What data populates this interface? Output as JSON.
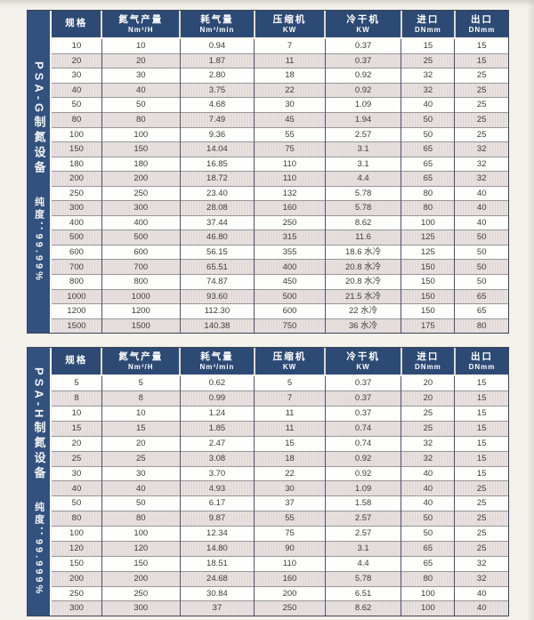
{
  "columns": [
    {
      "title": "规格",
      "sub": ""
    },
    {
      "title": "氮气产量",
      "sub": "Nm³/H"
    },
    {
      "title": "耗气量",
      "sub": "Nm³/min"
    },
    {
      "title": "压缩机",
      "sub": "KW"
    },
    {
      "title": "冷干机",
      "sub": "KW"
    },
    {
      "title": "进口",
      "sub": "DNmm"
    },
    {
      "title": "出口",
      "sub": "DNmm"
    }
  ],
  "colors": {
    "header_navy": "#2d4a74",
    "sidebar_navy": "#33517e",
    "stripe_row": "#ebe4e2",
    "white_row": "#fdfdfb",
    "page_bg": "#f3f1ec"
  },
  "tables": [
    {
      "series_label": "PSA-G制氮设备",
      "purity_label": "纯度：99.99%",
      "rows": [
        [
          "10",
          "10",
          "0.94",
          "7",
          "0.37",
          "15",
          "15"
        ],
        [
          "20",
          "20",
          "1.87",
          "11",
          "0.37",
          "25",
          "15"
        ],
        [
          "30",
          "30",
          "2.80",
          "18",
          "0.92",
          "32",
          "25"
        ],
        [
          "40",
          "40",
          "3.75",
          "22",
          "0.92",
          "32",
          "25"
        ],
        [
          "50",
          "50",
          "4.68",
          "30",
          "1.09",
          "40",
          "25"
        ],
        [
          "80",
          "80",
          "7.49",
          "45",
          "1.94",
          "50",
          "25"
        ],
        [
          "100",
          "100",
          "9.36",
          "55",
          "2.57",
          "50",
          "25"
        ],
        [
          "150",
          "150",
          "14.04",
          "75",
          "3.1",
          "65",
          "32"
        ],
        [
          "180",
          "180",
          "16.85",
          "110",
          "3.1",
          "65",
          "32"
        ],
        [
          "200",
          "200",
          "18.72",
          "110",
          "4.4",
          "65",
          "32"
        ],
        [
          "250",
          "250",
          "23.40",
          "132",
          "5.78",
          "80",
          "40"
        ],
        [
          "300",
          "300",
          "28.08",
          "160",
          "5.78",
          "80",
          "40"
        ],
        [
          "400",
          "400",
          "37.44",
          "250",
          "8.62",
          "100",
          "40"
        ],
        [
          "500",
          "500",
          "46.80",
          "315",
          "11.6",
          "125",
          "50"
        ],
        [
          "600",
          "600",
          "56.15",
          "355",
          "18.6 水冷",
          "125",
          "50"
        ],
        [
          "700",
          "700",
          "65.51",
          "400",
          "20.8 水冷",
          "150",
          "50"
        ],
        [
          "800",
          "800",
          "74.87",
          "450",
          "20.8 水冷",
          "150",
          "50"
        ],
        [
          "1000",
          "1000",
          "93.60",
          "500",
          "21.5 水冷",
          "150",
          "65"
        ],
        [
          "1200",
          "1200",
          "112.30",
          "600",
          "22 水冷",
          "150",
          "65"
        ],
        [
          "1500",
          "1500",
          "140.38",
          "750",
          "36 水冷",
          "175",
          "80"
        ]
      ]
    },
    {
      "series_label": "PSA-H制氮设备",
      "purity_label": "纯度：99.999%",
      "rows": [
        [
          "5",
          "5",
          "0.62",
          "5",
          "0.37",
          "20",
          "15"
        ],
        [
          "8",
          "8",
          "0.99",
          "7",
          "0.37",
          "20",
          "15"
        ],
        [
          "10",
          "10",
          "1.24",
          "11",
          "0.37",
          "25",
          "15"
        ],
        [
          "15",
          "15",
          "1.85",
          "11",
          "0.74",
          "25",
          "15"
        ],
        [
          "20",
          "20",
          "2.47",
          "15",
          "0.74",
          "32",
          "15"
        ],
        [
          "25",
          "25",
          "3.08",
          "18",
          "0.92",
          "32",
          "15"
        ],
        [
          "30",
          "30",
          "3.70",
          "22",
          "0.92",
          "40",
          "15"
        ],
        [
          "40",
          "40",
          "4.93",
          "30",
          "1.09",
          "40",
          "25"
        ],
        [
          "50",
          "50",
          "6.17",
          "37",
          "1.58",
          "40",
          "25"
        ],
        [
          "80",
          "80",
          "9.87",
          "55",
          "2.57",
          "50",
          "25"
        ],
        [
          "100",
          "100",
          "12.34",
          "75",
          "2.57",
          "50",
          "25"
        ],
        [
          "120",
          "120",
          "14.80",
          "90",
          "3.1",
          "65",
          "25"
        ],
        [
          "150",
          "150",
          "18.51",
          "110",
          "4.4",
          "65",
          "32"
        ],
        [
          "200",
          "200",
          "24.68",
          "160",
          "5.78",
          "80",
          "32"
        ],
        [
          "250",
          "250",
          "30.84",
          "200",
          "6.51",
          "100",
          "40"
        ],
        [
          "300",
          "300",
          "37",
          "250",
          "8.62",
          "100",
          "40"
        ]
      ]
    }
  ]
}
